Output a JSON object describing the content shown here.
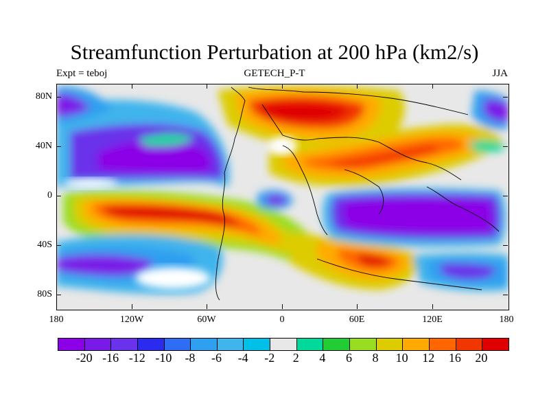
{
  "title": "Streamfunction Perturbation at 200 hPa (km2/s)",
  "subtitle_left": "Expt = teboj",
  "subtitle_center": "GETECH_P-T",
  "subtitle_right": "JJA",
  "lat_labels": [
    "80N",
    "40N",
    "0",
    "40S",
    "80S"
  ],
  "lon_labels": [
    "180",
    "120W",
    "60W",
    "0",
    "60E",
    "120E",
    "180"
  ],
  "colorbar": {
    "colors": [
      "#8b00e6",
      "#7a1ae8",
      "#6a32ea",
      "#2b2bf0",
      "#2d6ef5",
      "#2f9ff0",
      "#40b4ec",
      "#00c0e8",
      "#e8e8e8",
      "#00d99a",
      "#22cc33",
      "#99dd22",
      "#ddcc00",
      "#ffaa00",
      "#ff6600",
      "#f23600",
      "#e00000"
    ],
    "labels": [
      "-20",
      "-16",
      "-12",
      "-10",
      "-8",
      "-6",
      "-4",
      "-2",
      "2",
      "4",
      "6",
      "8",
      "10",
      "12",
      "16",
      "20"
    ]
  },
  "chart_data": {
    "type": "heatmap",
    "title": "Streamfunction Perturbation at 200 hPa (km2/s)",
    "subtitle": "GETECH_P-T",
    "season": "JJA",
    "experiment": "Expt = teboj",
    "x_range": [
      -180,
      180
    ],
    "y_range": [
      -90,
      90
    ],
    "contour_levels": [
      -20,
      -16,
      -12,
      -10,
      -8,
      -6,
      -4,
      -2,
      2,
      4,
      6,
      8,
      10,
      12,
      16,
      20
    ],
    "features": [
      {
        "lon": 40,
        "lat": 65,
        "value": 20
      },
      {
        "lon": -100,
        "lat": -15,
        "value": 22
      },
      {
        "lon": 75,
        "lat": -50,
        "value": 20
      },
      {
        "lon": 150,
        "lat": 40,
        "value": 14
      },
      {
        "lon": 60,
        "lat": 25,
        "value": 14
      },
      {
        "lon": -120,
        "lat": 28,
        "value": -18
      },
      {
        "lon": -175,
        "lat": 70,
        "value": -16
      },
      {
        "lon": 130,
        "lat": -15,
        "value": -20
      },
      {
        "lon": -10,
        "lat": -5,
        "value": -8
      },
      {
        "lon": -170,
        "lat": -55,
        "value": -16
      },
      {
        "lon": 160,
        "lat": -60,
        "value": -12
      },
      {
        "lon": 175,
        "lat": 65,
        "value": -12
      }
    ]
  }
}
